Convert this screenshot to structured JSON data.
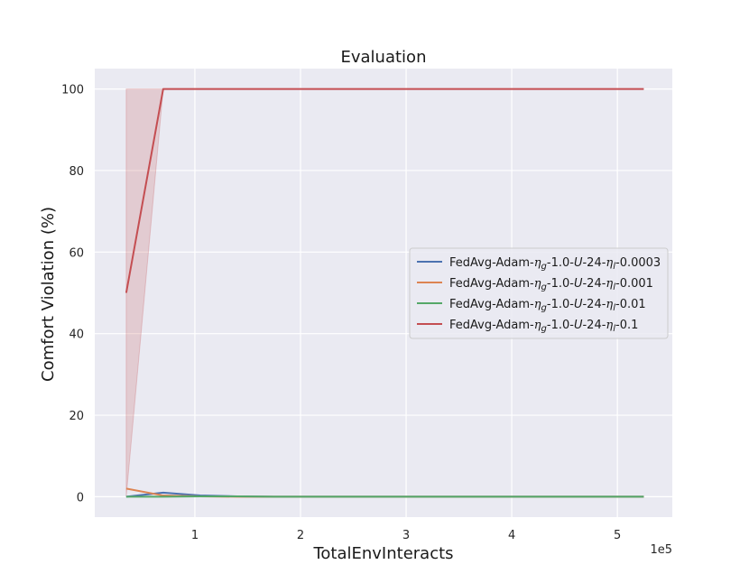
{
  "chart_data": {
    "type": "line",
    "title": "Evaluation",
    "xlabel": "TotalEnvInteracts",
    "ylabel": "Comfort Violation (%)",
    "x_offset_label": "1e5",
    "x_scale": 100000,
    "xlim": [
      5200,
      552000
    ],
    "ylim": [
      -5,
      105
    ],
    "xticks": [
      1,
      2,
      3,
      4,
      5
    ],
    "yticks": [
      0,
      20,
      40,
      60,
      80,
      100
    ],
    "grid": true,
    "legend_position": "center-right",
    "background": "#eaeaf2",
    "series": [
      {
        "name": "FedAvg-Adam-ηg-1.0-U-24-ηl-0.0003",
        "name_parts": [
          "FedAvg-Adam-",
          "η",
          "g",
          "-1.0-",
          "U",
          "-24-",
          "η",
          "l",
          "-0.0003"
        ],
        "color": "#4c72b0",
        "x": [
          35000,
          70000,
          105000,
          140000,
          175000,
          525000
        ],
        "y": [
          0,
          1.0,
          0.3,
          0.1,
          0,
          0
        ]
      },
      {
        "name": "FedAvg-Adam-ηg-1.0-U-24-ηl-0.001",
        "name_parts": [
          "FedAvg-Adam-",
          "η",
          "g",
          "-1.0-",
          "U",
          "-24-",
          "η",
          "l",
          "-0.001"
        ],
        "color": "#dd8452",
        "x": [
          35000,
          70000,
          105000,
          140000,
          175000,
          525000
        ],
        "y": [
          2.0,
          0.3,
          0.1,
          0,
          0,
          0
        ]
      },
      {
        "name": "FedAvg-Adam-ηg-1.0-U-24-ηl-0.01",
        "name_parts": [
          "FedAvg-Adam-",
          "η",
          "g",
          "-1.0-",
          "U",
          "-24-",
          "η",
          "l",
          "-0.01"
        ],
        "color": "#55a868",
        "x": [
          35000,
          70000,
          105000,
          140000,
          175000,
          525000
        ],
        "y": [
          0,
          0,
          0.1,
          0.1,
          0,
          0
        ]
      },
      {
        "name": "FedAvg-Adam-ηg-1.0-U-24-ηl-0.1",
        "name_parts": [
          "FedAvg-Adam-",
          "η",
          "g",
          "-1.0-",
          "U",
          "-24-",
          "η",
          "l",
          "-0.1"
        ],
        "color": "#c44e52",
        "x": [
          35000,
          70000,
          105000,
          525000
        ],
        "y": [
          50,
          100,
          100,
          100
        ],
        "band_lower": [
          0,
          100,
          100,
          100
        ],
        "band_upper": [
          100,
          100,
          100,
          100
        ]
      }
    ]
  }
}
